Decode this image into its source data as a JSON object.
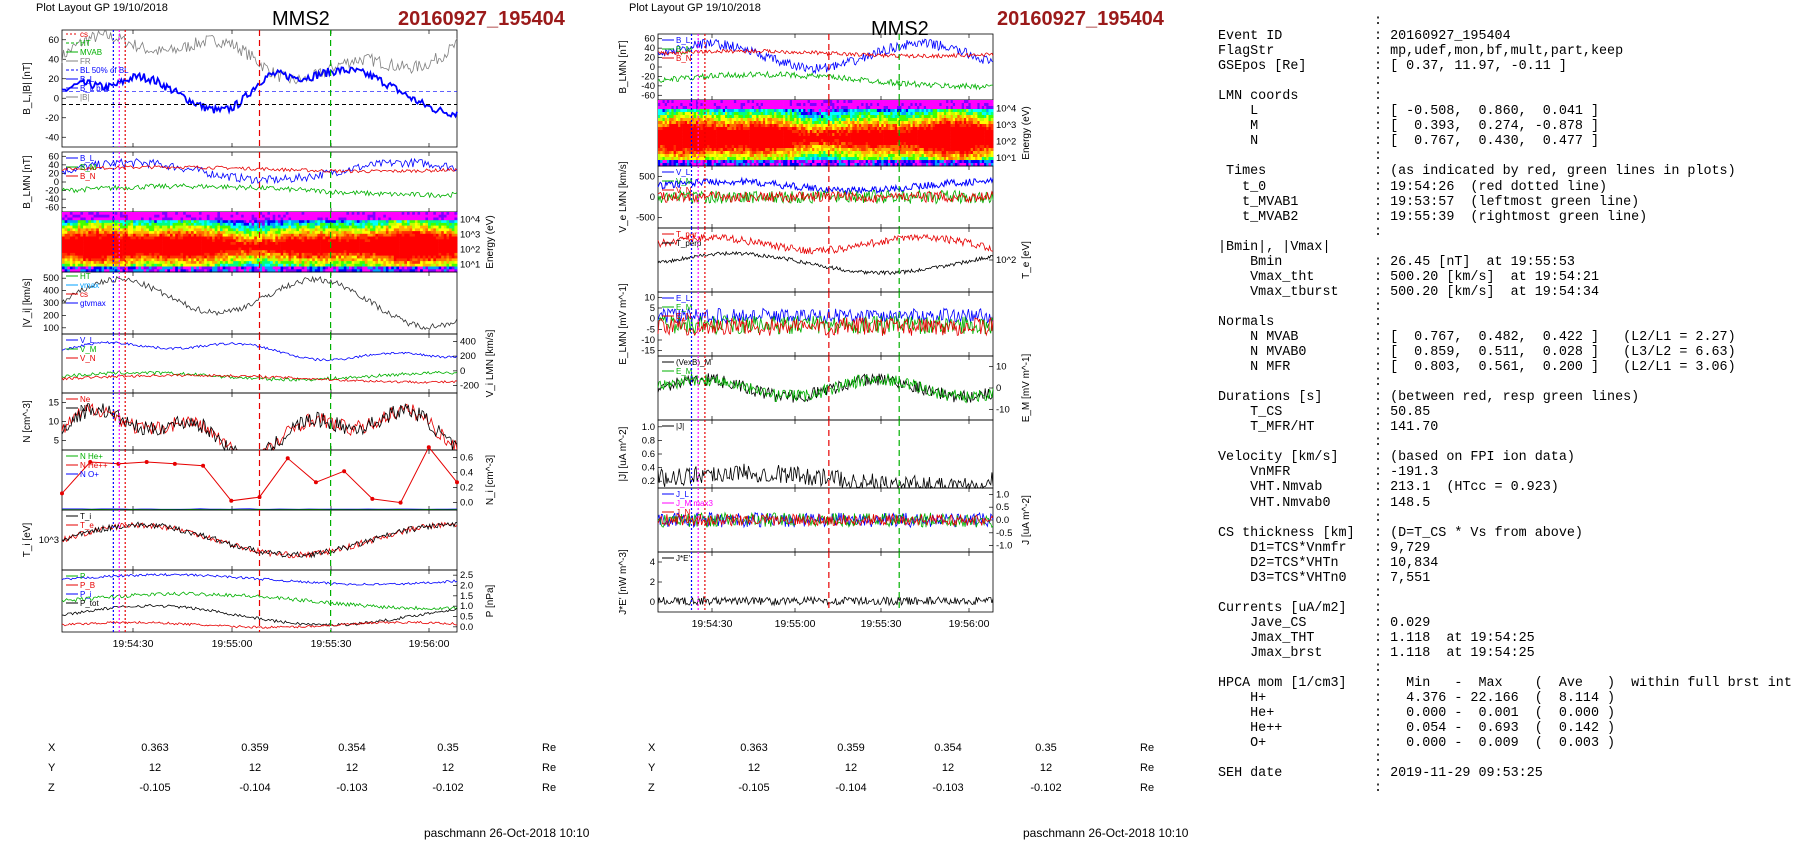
{
  "left_plot": {
    "top_label": "Plot Layout GP 19/10/2018",
    "spacecraft": "MMS2",
    "event_id": "20160927_195404",
    "footer": "paschmann 26-Oct-2018 10:10",
    "eph_rows": [
      {
        "label": "X",
        "values": [
          "0.363",
          "0.359",
          "0.354",
          "0.35"
        ],
        "unit": "Re"
      },
      {
        "label": "Y",
        "values": [
          "12",
          "12",
          "12",
          "12"
        ],
        "unit": "Re"
      },
      {
        "label": "Z",
        "values": [
          "-0.105",
          "-0.104",
          "-0.103",
          "-0.102"
        ],
        "unit": "Re"
      }
    ]
  },
  "right_plot": {
    "top_label": "Plot Layout GP 19/10/2018",
    "spacecraft": "MMS2",
    "event_id": "20160927_195404",
    "footer": "paschmann 26-Oct-2018 10:10",
    "eph_rows": [
      {
        "label": "X",
        "values": [
          "0.363",
          "0.359",
          "0.354",
          "0.35"
        ],
        "unit": "Re"
      },
      {
        "label": "Y",
        "values": [
          "12",
          "12",
          "12",
          "12"
        ],
        "unit": "Re"
      },
      {
        "label": "Z",
        "values": [
          "-0.105",
          "-0.104",
          "-0.103",
          "-0.102"
        ],
        "unit": "Re"
      }
    ]
  },
  "colors": {
    "event_id": "#9b1a1a",
    "red": "#e60000",
    "green": "#00b000",
    "blue": "#0000ff",
    "magenta": "#ff00ff"
  },
  "chart_data": [
    {
      "type": "line",
      "x_ticks": [
        "19:54:30",
        "19:55:00",
        "19:55:30",
        "19:56:00"
      ],
      "panels": [
        {
          "ylabel": "B_L,|B| [nT]",
          "ylim": [
            -40,
            70
          ],
          "y_ticks": [
            "60",
            "40",
            "20",
            "0",
            "-20",
            "-40"
          ],
          "legend": [
            "cs",
            "HT",
            "MVAB",
            "FR",
            "BL 50% of BL",
            "B_L",
            "B_L brst",
            "|B|"
          ]
        },
        {
          "ylabel": "B_LMN [nT]",
          "ylim": [
            -80,
            60
          ],
          "y_ticks": [
            "60",
            "40",
            "20",
            "0",
            "-20",
            "-40",
            "-60"
          ],
          "legend": [
            "B_L",
            "B_M",
            "B_N"
          ]
        },
        {
          "ylabel": "Energy (eV)",
          "type": "heatmap",
          "y_ticks": [
            "10^4",
            "10^3",
            "10^2",
            "10^1"
          ]
        },
        {
          "ylabel": "|V_i| [km/s]",
          "ylim": [
            100,
            500
          ],
          "y_ticks": [
            "500",
            "400",
            "300",
            "200",
            "100"
          ],
          "legend": [
            "HT",
            "vmax",
            "cs",
            "gtvmax"
          ]
        },
        {
          "ylabel": "V_i LMN [km/s]",
          "ylim": [
            -250,
            450
          ],
          "y_ticks": [
            "400",
            "200",
            "0",
            "-200"
          ],
          "legend": [
            "V_L",
            "V_M",
            "V_N"
          ]
        },
        {
          "ylabel": "N [cm^-3]",
          "ylim": [
            3,
            18
          ],
          "y_ticks": [
            "15",
            "10",
            "5"
          ],
          "legend": [
            "Ne",
            "Ni"
          ]
        },
        {
          "ylabel": "N_i [cm^-3]",
          "ylim": [
            0,
            0.65
          ],
          "y_ticks": [
            "0.6",
            "0.4",
            "0.2",
            "0.0"
          ],
          "legend": [
            "N He+",
            "N He++",
            "N O+"
          ],
          "series": [
            {
              "name": "N He++",
              "values": [
                0.18,
                0.52,
                0.5,
                0.52,
                0.5,
                0.48,
                0.1,
                0.14,
                0.56,
                0.3,
                0.42,
                0.12,
                0.08,
                0.68,
                0.3
              ]
            }
          ]
        },
        {
          "ylabel": "T_i [eV]",
          "y_ticks": [
            "10^3"
          ],
          "legend": [
            "T_i",
            "T_e"
          ]
        },
        {
          "ylabel": "P [nPa]",
          "ylim": [
            0,
            2.6
          ],
          "y_ticks": [
            "2.5",
            "2.0",
            "1.5",
            "1.0",
            "0.5",
            "0.0"
          ],
          "legend": [
            "P",
            "P_B",
            "P_i",
            "P_tot"
          ]
        }
      ]
    },
    {
      "type": "line",
      "x_ticks": [
        "19:54:30",
        "19:55:00",
        "19:55:30",
        "19:56:00"
      ],
      "panels": [
        {
          "ylabel": "B_LMN [nT]",
          "ylim": [
            -70,
            65
          ],
          "y_ticks": [
            "60",
            "40",
            "20",
            "0",
            "-20",
            "-40",
            "-60"
          ],
          "legend": [
            "B_L",
            "B_M",
            "B_N"
          ]
        },
        {
          "ylabel": "Energy (eV)",
          "type": "heatmap",
          "y_ticks": [
            "10^4",
            "10^3",
            "10^2",
            "10^1"
          ]
        },
        {
          "ylabel": "V_e LMN [km/s]",
          "ylim": [
            -700,
            700
          ],
          "y_ticks": [
            "500",
            "0",
            "-500"
          ],
          "legend": [
            "V_L",
            "V_M",
            "V_N"
          ]
        },
        {
          "ylabel": "T_e [eV]",
          "y_ticks": [
            "10^2"
          ],
          "legend": [
            "T_par",
            "T_perp"
          ]
        },
        {
          "ylabel": "E_LMN [mV m^-1]",
          "ylim": [
            -20,
            15
          ],
          "y_ticks": [
            "10",
            "5",
            "0",
            "-5",
            "-10",
            "-15"
          ],
          "legend": [
            "E_L",
            "E_M",
            "E_N"
          ]
        },
        {
          "ylabel": "E_M [mV m^-1]",
          "ylim": [
            -15,
            15
          ],
          "y_ticks": [
            "10",
            "0",
            "-10"
          ],
          "legend": [
            "(VexB)_M",
            "E_M"
          ]
        },
        {
          "ylabel": "|J| [uA m^-2]",
          "ylim": [
            0,
            1.1
          ],
          "y_ticks": [
            "1.0",
            "0.8",
            "0.6",
            "0.4",
            "0.2"
          ],
          "legend": [
            "|J|"
          ]
        },
        {
          "ylabel": "J [uA m^-2]",
          "ylim": [
            -1.1,
            1.1
          ],
          "y_ticks": [
            "1.0",
            "0.5",
            "0.0",
            "-0.5",
            "-1.0"
          ],
          "legend": [
            "J_L",
            "J_M max3",
            "J_N"
          ]
        },
        {
          "ylabel": "J*E' [nW m^-3]",
          "ylim": [
            -1,
            5
          ],
          "y_ticks": [
            "4",
            "2",
            "0"
          ],
          "legend": [
            "J*E'"
          ]
        }
      ]
    }
  ],
  "info_lines": [
    [
      "",
      ":"
    ],
    [
      "Event ID",
      ": 20160927_195404"
    ],
    [
      "FlagStr",
      ": mp,udef,mon,bf,mult,part,keep"
    ],
    [
      "GSEpos [Re]",
      ": [ 0.37, 11.97, -0.11 ]"
    ],
    [
      "",
      ":"
    ],
    [
      "LMN coords",
      ":"
    ],
    [
      "    L",
      ": [ -0.508,  0.860,  0.041 ]"
    ],
    [
      "    M",
      ": [  0.393,  0.274, -0.878 ]"
    ],
    [
      "    N",
      ": [  0.767,  0.430,  0.477 ]"
    ],
    [
      "",
      ":"
    ],
    [
      " Times",
      ": (as indicated by red, green lines in plots)"
    ],
    [
      "   t_0",
      ": 19:54:26  (red dotted line)"
    ],
    [
      "   t_MVAB1",
      ": 19:53:57  (leftmost green line)"
    ],
    [
      "   t_MVAB2",
      ": 19:55:39  (rightmost green line)"
    ],
    [
      "",
      ":"
    ],
    [
      "|Bmin|, |Vmax|",
      ""
    ],
    [
      "    Bmin",
      ": 26.45 [nT]  at 19:55:53"
    ],
    [
      "    Vmax_tht",
      ": 500.20 [km/s]  at 19:54:21"
    ],
    [
      "    Vmax_tburst",
      ": 500.20 [km/s]  at 19:54:34"
    ],
    [
      "",
      ":"
    ],
    [
      "Normals",
      ":"
    ],
    [
      "    N MVAB",
      ": [  0.767,  0.482,  0.422 ]   (L2/L1 = 2.27)"
    ],
    [
      "    N MVAB0",
      ": [  0.859,  0.511,  0.028 ]   (L3/L2 = 6.63)"
    ],
    [
      "    N MFR",
      ": [  0.803,  0.561,  0.200 ]   (L2/L1 = 3.06)"
    ],
    [
      "",
      ":"
    ],
    [
      "Durations [s]",
      ": (between red, resp green lines)"
    ],
    [
      "    T_CS",
      ": 50.85"
    ],
    [
      "    T_MFR/HT",
      ": 141.70"
    ],
    [
      "",
      ":"
    ],
    [
      "Velocity [km/s]",
      ": (based on FPI ion data)"
    ],
    [
      "    VnMFR",
      ": -191.3"
    ],
    [
      "    VHT.Nmvab",
      ": 213.1  (HTcc = 0.923)"
    ],
    [
      "    VHT.Nmvab0",
      ": 148.5"
    ],
    [
      "",
      ":"
    ],
    [
      "CS thickness [km]",
      ": (D=T_CS * Vs from above)"
    ],
    [
      "    D1=TCS*Vnmfr",
      ": 9,729"
    ],
    [
      "    D2=TCS*VHTn",
      ": 10,834"
    ],
    [
      "    D3=TCS*VHTn0",
      ": 7,551"
    ],
    [
      "",
      ":"
    ],
    [
      "Currents [uA/m2]",
      ":"
    ],
    [
      "    Jave_CS",
      ": 0.029"
    ],
    [
      "    Jmax_THT",
      ": 1.118  at 19:54:25"
    ],
    [
      "    Jmax_brst",
      ": 1.118  at 19:54:25"
    ],
    [
      "",
      ":"
    ],
    [
      "HPCA mom [1/cm3]",
      ":   Min   -  Max    (  Ave   )  within full brst int"
    ],
    [
      "    H+",
      ":   4.376 - 22.166  (  8.114 )"
    ],
    [
      "    He+",
      ":   0.000 -  0.001  (  0.000 )"
    ],
    [
      "    He++",
      ":   0.054 -  0.693  (  0.142 )"
    ],
    [
      "    O+",
      ":   0.000 -  0.009  (  0.003 )"
    ],
    [
      "",
      ":"
    ],
    [
      "SEH date",
      ": 2019-11-29 09:53:25"
    ],
    [
      "",
      ":"
    ]
  ]
}
